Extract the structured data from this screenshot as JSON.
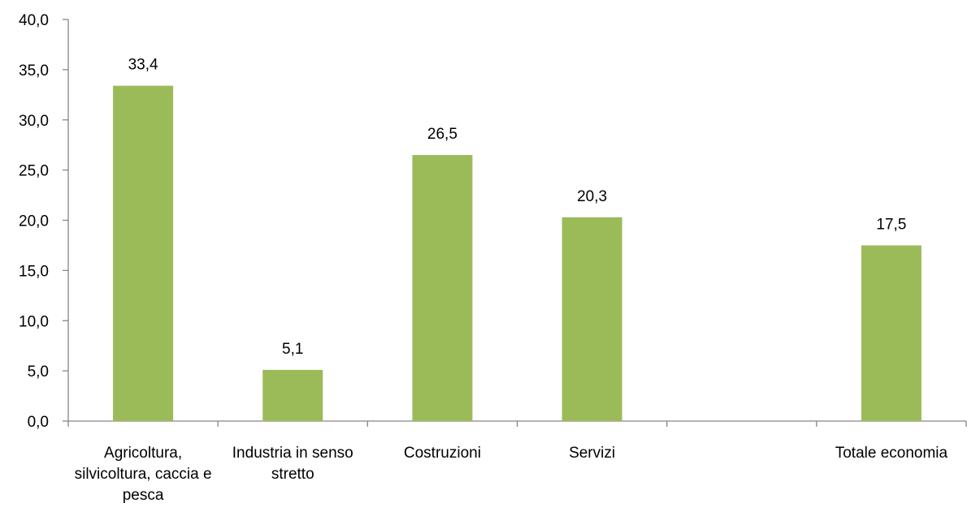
{
  "chart_data": {
    "type": "bar",
    "categories": [
      "Agricoltura, silvicoltura, caccia e pesca",
      "Industria in senso stretto",
      "Costruzioni",
      "Servizi",
      null,
      "Totale economia"
    ],
    "values": [
      33.4,
      5.1,
      26.5,
      20.3,
      null,
      17.5
    ],
    "value_labels": [
      "33,4",
      "5,1",
      "26,5",
      "20,3",
      null,
      "17,5"
    ],
    "color": "#9bbb59",
    "ylim": [
      0,
      40
    ],
    "yticks": [
      {
        "value": 0,
        "label": "0,0"
      },
      {
        "value": 5,
        "label": "5,0"
      },
      {
        "value": 10,
        "label": "10,0"
      },
      {
        "value": 15,
        "label": "15,0"
      },
      {
        "value": 20,
        "label": "20,0"
      },
      {
        "value": 25,
        "label": "25,0"
      },
      {
        "value": 30,
        "label": "30,0"
      },
      {
        "value": 35,
        "label": "35,0"
      },
      {
        "value": 40,
        "label": "40,0"
      }
    ],
    "grid": false
  }
}
